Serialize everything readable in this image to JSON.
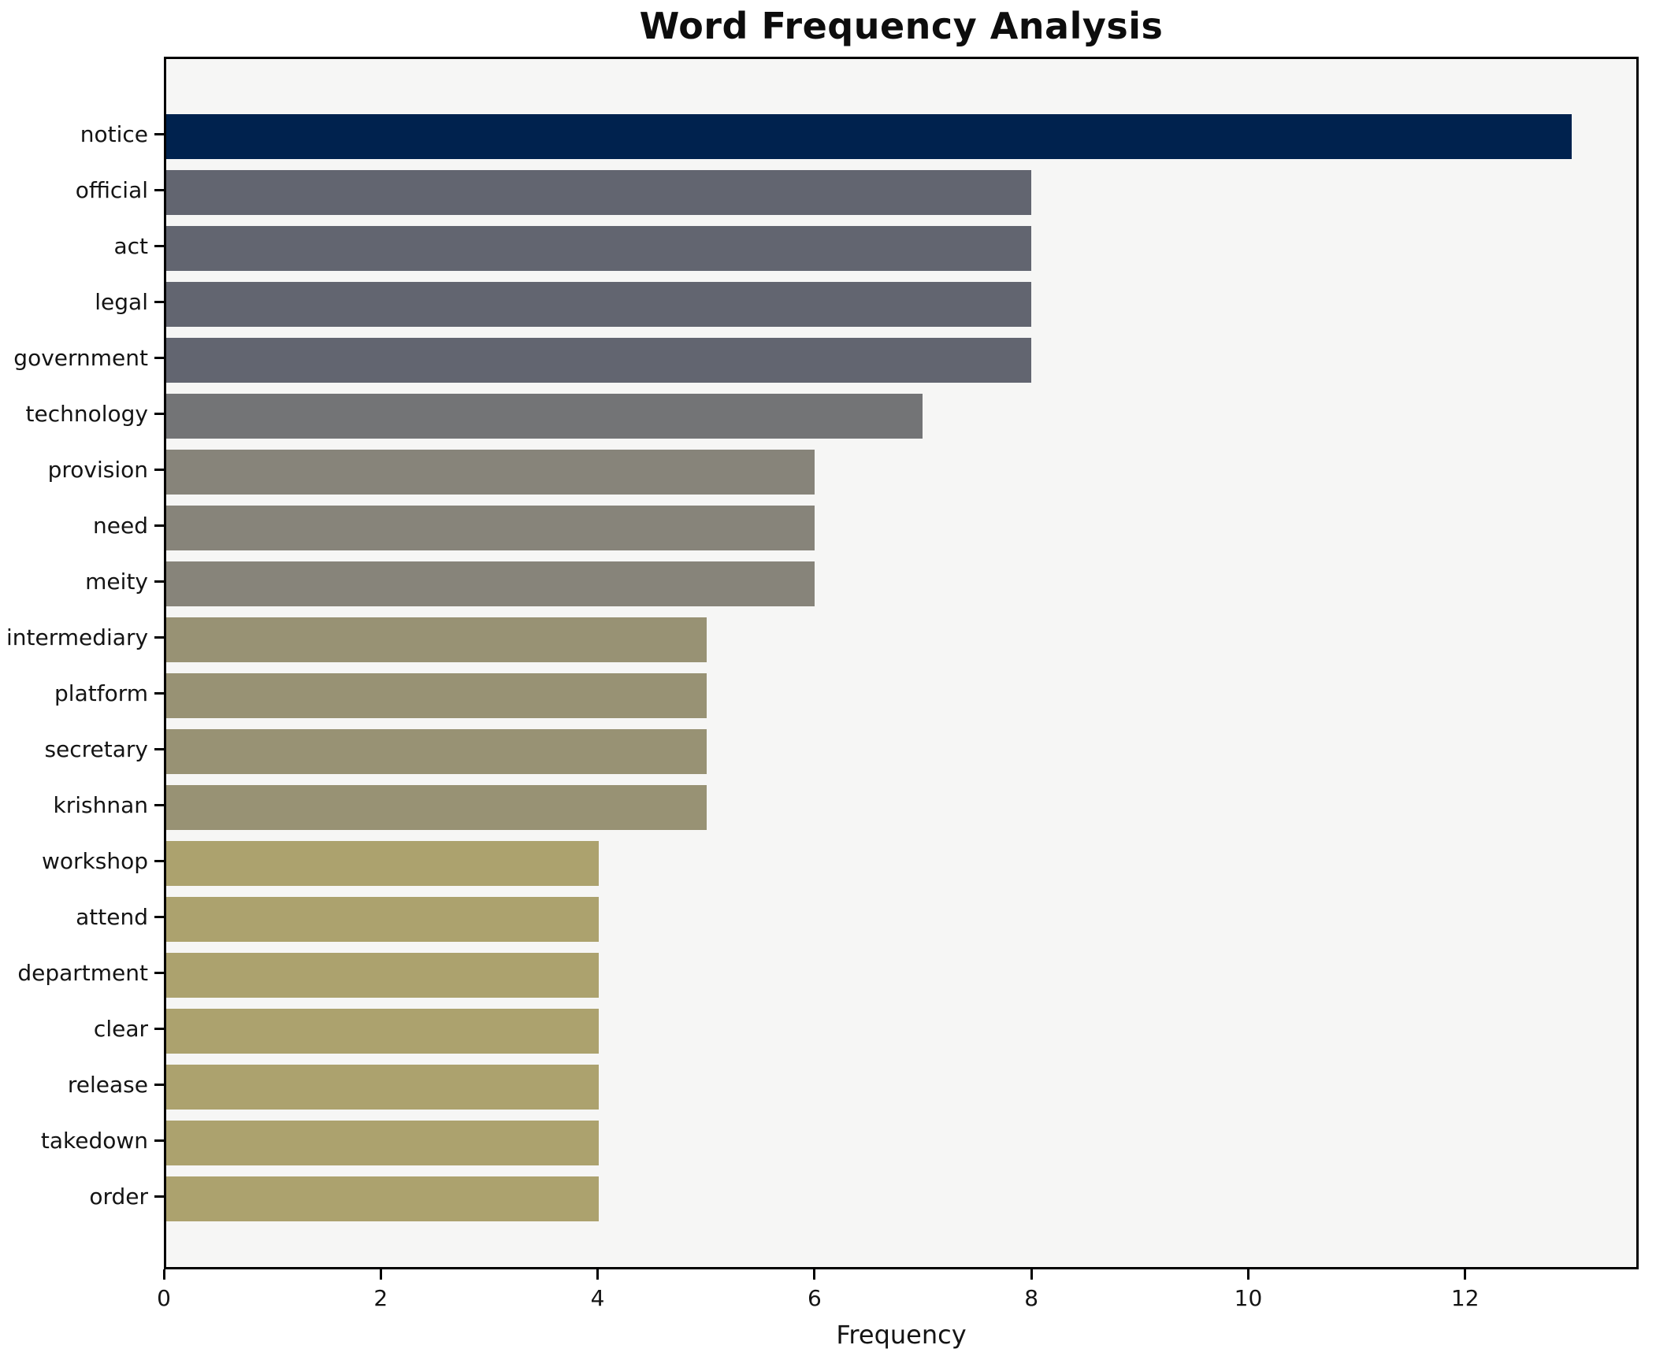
{
  "chart_data": {
    "type": "bar",
    "orientation": "horizontal",
    "title": "Word Frequency Analysis",
    "xlabel": "Frequency",
    "ylabel": "",
    "grid": false,
    "legend": null,
    "xlim": [
      0,
      13.6
    ],
    "xticks": [
      0,
      2,
      4,
      6,
      8,
      10,
      12
    ],
    "categories": [
      "notice",
      "official",
      "act",
      "legal",
      "government",
      "technology",
      "provision",
      "need",
      "meity",
      "intermediary",
      "platform",
      "secretary",
      "krishnan",
      "workshop",
      "attend",
      "department",
      "clear",
      "release",
      "takedown",
      "order"
    ],
    "values": [
      13,
      8,
      8,
      8,
      8,
      7,
      6,
      6,
      6,
      5,
      5,
      5,
      5,
      4,
      4,
      4,
      4,
      4,
      4,
      4
    ],
    "bar_colors": [
      "#00224e",
      "#626570",
      "#626570",
      "#626570",
      "#626570",
      "#737476",
      "#87847a",
      "#87847a",
      "#87847a",
      "#989274",
      "#989274",
      "#989274",
      "#989274",
      "#aca26e",
      "#aca26e",
      "#aca26e",
      "#aca26e",
      "#aca26e",
      "#aca26e",
      "#aca26e"
    ],
    "plot_background": "#f6f6f5",
    "figure_background": "#ffffff",
    "spine_color": "#000000"
  }
}
